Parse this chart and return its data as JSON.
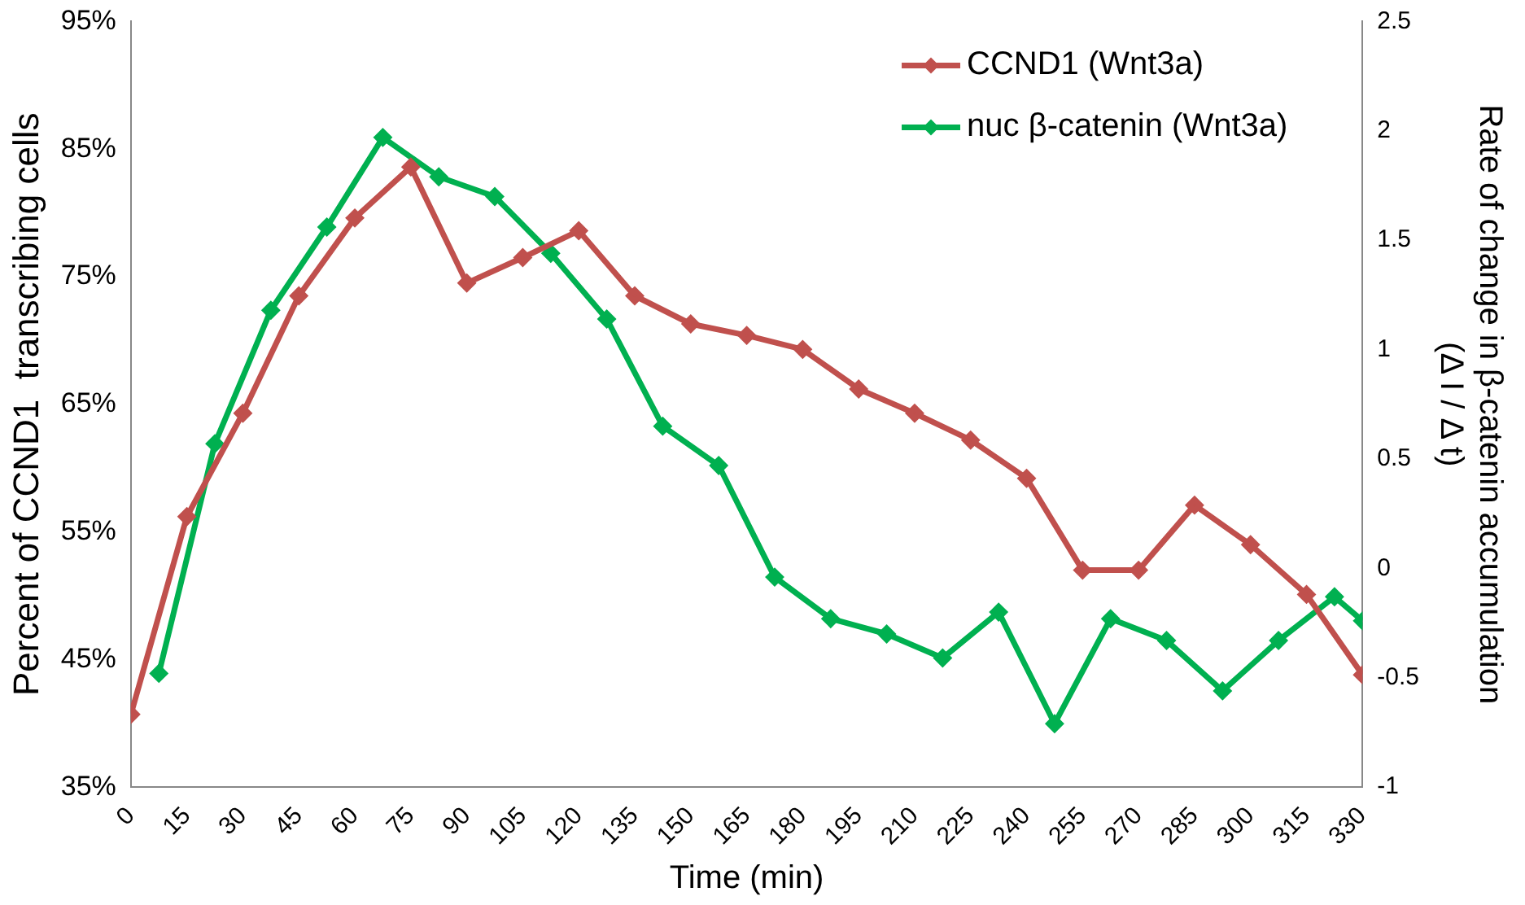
{
  "chart_data": {
    "type": "line",
    "xlabel": "Time (min)",
    "ylabel": "Percent of CCND1  transcribing cells",
    "y2label": "Rate of change in β-catenin accumulation\n(Δ I / Δ t)",
    "xlim": [
      0,
      330
    ],
    "xticks": [
      0,
      15,
      30,
      45,
      60,
      75,
      90,
      105,
      120,
      135,
      150,
      165,
      180,
      195,
      210,
      225,
      240,
      255,
      270,
      285,
      300,
      315,
      330
    ],
    "ylim": [
      35,
      95
    ],
    "yticks": [
      {
        "value": 35,
        "label": "35%"
      },
      {
        "value": 45,
        "label": "45%"
      },
      {
        "value": 55,
        "label": "55%"
      },
      {
        "value": 65,
        "label": "65%"
      },
      {
        "value": 75,
        "label": "75%"
      },
      {
        "value": 85,
        "label": "85%"
      },
      {
        "value": 95,
        "label": "95%"
      }
    ],
    "y2lim": [
      -1,
      2.5
    ],
    "y2ticks": [
      -1,
      -0.5,
      0,
      0.5,
      1,
      1.5,
      2,
      2.5
    ],
    "grid": false,
    "legend": "top right",
    "marker": "diamond",
    "line_style": "solid",
    "series": [
      {
        "name": "CCND1 (Wnt3a)",
        "color": "#c0504d",
        "x": [
          0,
          15,
          30,
          45,
          60,
          75,
          90,
          105,
          120,
          135,
          150,
          165,
          180,
          195,
          210,
          225,
          240,
          255,
          270,
          285,
          300,
          315,
          330
        ],
        "values": [
          40.7,
          56.2,
          64.3,
          73.5,
          79.6,
          83.6,
          74.5,
          76.5,
          78.6,
          73.5,
          71.3,
          70.4,
          69.3,
          66.2,
          64.3,
          62.2,
          59.2,
          52.0,
          52.0,
          57.1,
          54.0,
          50.1,
          43.8
        ]
      },
      {
        "name": "nuc β-catenin (Wnt3a)",
        "color": "#00b050",
        "axis": "y2",
        "x": [
          7.5,
          22.5,
          37.5,
          52.5,
          67.5,
          82.5,
          97.5,
          112.5,
          127.5,
          142.5,
          157.5,
          172.5,
          187.5,
          202.5,
          217.5,
          232.5,
          247.5,
          262.5,
          277.5,
          292.5,
          307.5,
          322.5,
          330
        ],
        "values": [
          -0.48,
          0.57,
          1.18,
          1.56,
          1.97,
          1.79,
          1.7,
          1.44,
          1.14,
          0.65,
          0.47,
          -0.04,
          -0.23,
          -0.3,
          -0.41,
          -0.2,
          -0.71,
          -0.23,
          -0.33,
          -0.56,
          -0.33,
          -0.13,
          -0.24
        ]
      }
    ]
  }
}
